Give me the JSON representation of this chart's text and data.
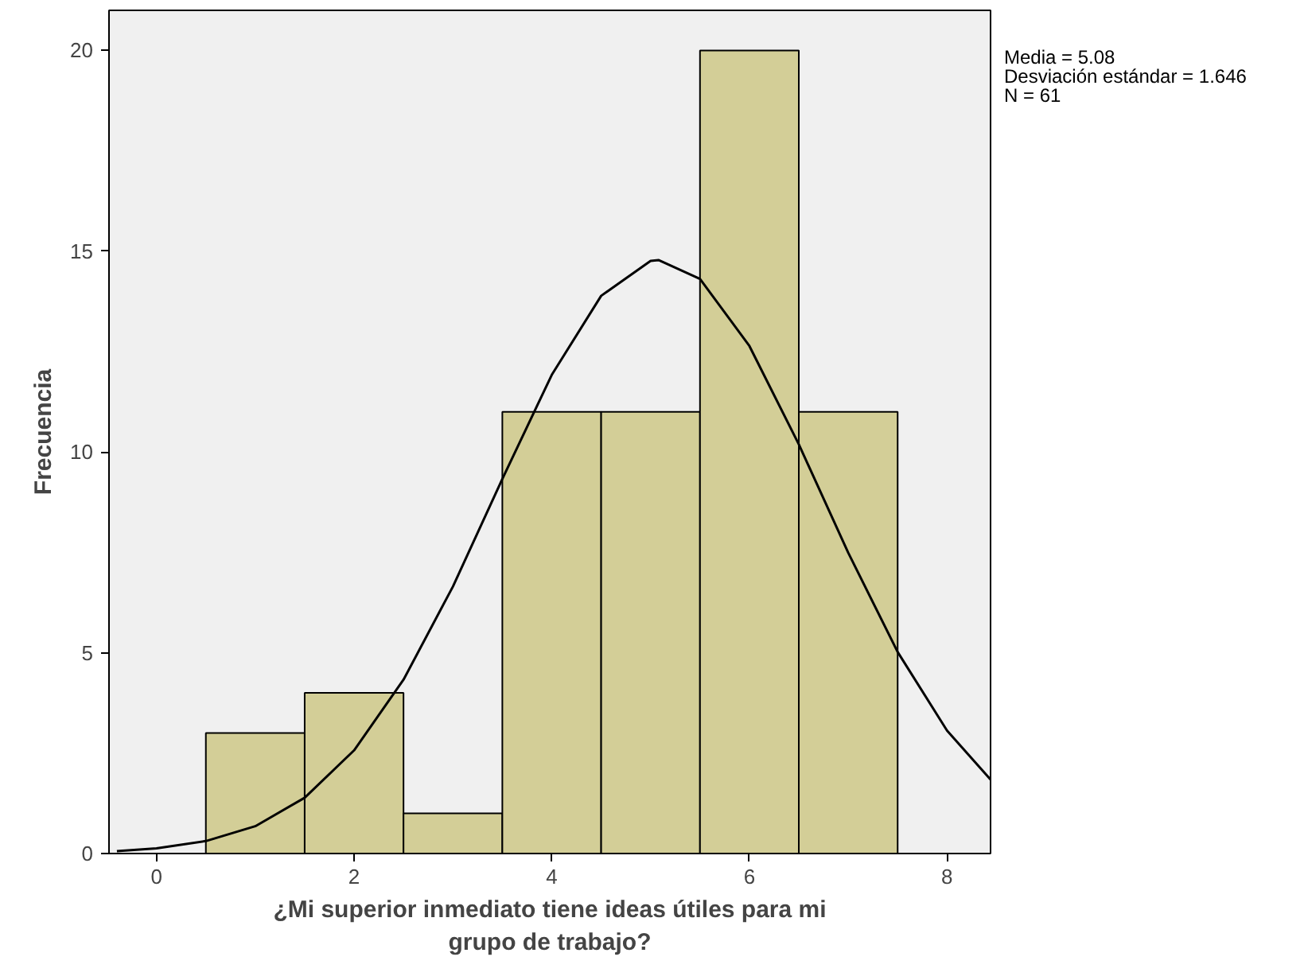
{
  "chart_data": {
    "type": "histogram",
    "xlabel": "¿Mi superior inmediato tiene ideas útiles para mi grupo de trabajo?",
    "ylabel": "Frecuencia",
    "bins": [
      0.5,
      1.5,
      2.5,
      3.5,
      4.5,
      5.5,
      6.5,
      7.5
    ],
    "values": [
      3,
      4,
      1,
      11,
      11,
      20,
      11
    ],
    "color": "#d3ce97",
    "series": [
      {
        "type": "line",
        "color": "#000000",
        "x": [
          -0.4,
          0,
          0.5,
          1,
          1.5,
          2,
          2.5,
          3,
          3.5,
          4,
          4.5,
          5,
          5.08,
          5.5,
          6,
          6.5,
          7,
          7.5,
          8,
          8.44
        ],
        "values": [
          0.06,
          0.13,
          0.31,
          0.68,
          1.39,
          2.57,
          4.33,
          6.65,
          9.33,
          11.92,
          13.89,
          14.76,
          14.78,
          14.31,
          12.64,
          10.19,
          7.49,
          5.02,
          3.06,
          1.84
        ]
      }
    ],
    "xlim": [
      -0.48,
      8.44
    ],
    "ylim": [
      0,
      21
    ],
    "xticks": [
      0,
      2,
      4,
      6,
      8
    ],
    "yticks": [
      0,
      5,
      10,
      15,
      20
    ],
    "annotations": [
      "Media = 5.08",
      "Desviación estándar = 1.646",
      "N = 61"
    ]
  }
}
